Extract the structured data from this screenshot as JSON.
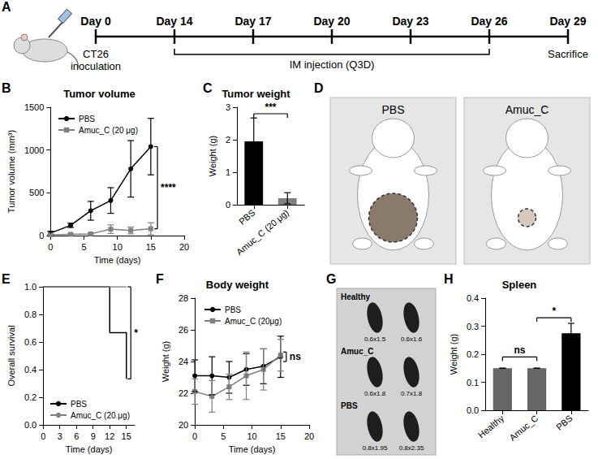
{
  "timeline": {
    "panel": "A",
    "days": [
      "Day 0",
      "Day 14",
      "Day 17",
      "Day 20",
      "Day 23",
      "Day 26",
      "Day 29"
    ],
    "events": [
      {
        "day": "Day 0",
        "label": "CT26 inoculation"
      },
      {
        "day": "Day 29",
        "label": "Sacrifice"
      }
    ],
    "span": {
      "from": "Day 14",
      "to": "Day 26",
      "label": "IM injection (Q3D)"
    }
  },
  "chart_data": [
    {
      "panel": "B",
      "type": "line",
      "title": "Tumor volume",
      "x_label": "Time (days)",
      "y_label": "Tumor volume (mm³)",
      "xlim": [
        0,
        20
      ],
      "xticks": [
        0,
        5,
        10,
        15,
        20
      ],
      "ylim": [
        0,
        1500
      ],
      "yticks": [
        0,
        500,
        1000,
        1500
      ],
      "grid": false,
      "legend": "upper left",
      "series": [
        {
          "name": "PBS",
          "color": "#000000",
          "marker": "circle",
          "x": [
            0,
            3,
            6,
            9,
            12,
            15
          ],
          "values": [
            30,
            120,
            290,
            410,
            780,
            1040
          ],
          "errors": [
            20,
            25,
            110,
            150,
            330,
            330
          ]
        },
        {
          "name": "Amuc_C (20 μg)",
          "color": "#808080",
          "marker": "square",
          "x": [
            0,
            3,
            6,
            9,
            12,
            15
          ],
          "values": [
            10,
            15,
            20,
            75,
            60,
            80
          ],
          "errors": [
            5,
            5,
            10,
            50,
            40,
            70
          ]
        }
      ],
      "annotations": [
        {
          "text": "****",
          "x": 16,
          "y": [
            80,
            1040
          ]
        }
      ]
    },
    {
      "panel": "C",
      "type": "bar",
      "title": "Tumor weight",
      "y_label": "Weight (g)",
      "categories": [
        "PBS",
        "Amuc_C (20 μg)"
      ],
      "values": [
        1.95,
        0.2
      ],
      "errors": [
        0.72,
        0.17
      ],
      "colors": [
        "#000000",
        "#808080"
      ],
      "ylim": [
        0,
        3
      ],
      "yticks": [
        0,
        1,
        2,
        3
      ],
      "grid": false,
      "annotations": [
        {
          "text": "***",
          "x": [
            "PBS",
            "Amuc_C (20 μg)"
          ],
          "y": 2.8
        }
      ]
    },
    {
      "panel": "E",
      "type": "line",
      "line_style": "step",
      "marker": "none",
      "x_label": "Time (days)",
      "y_label": "Overall survival",
      "xlim": [
        0,
        16.5
      ],
      "xticks": [
        0,
        3,
        6,
        9,
        12,
        15
      ],
      "ylim": [
        0,
        1
      ],
      "yticks": [
        {
          "value": 0,
          "label": "0.0"
        },
        0.2,
        0.4,
        0.6,
        0.8,
        {
          "value": 1,
          "label": "1.0"
        }
      ],
      "grid": false,
      "legend": "lower left",
      "series": [
        {
          "name": "PBS",
          "color": "#000000",
          "x": [
            0,
            12,
            15
          ],
          "values": [
            1,
            0.667,
            0.333
          ]
        },
        {
          "name": "Amuc_C (20 μg)",
          "color": "#808080",
          "x": [
            0,
            15
          ],
          "values": [
            1,
            1
          ]
        }
      ],
      "annotations": [
        {
          "text": "*",
          "x": 15.8,
          "y": [
            0.333,
            1
          ]
        }
      ]
    },
    {
      "panel": "F",
      "type": "line",
      "title": "Body weight",
      "x_label": "Time (days)",
      "y_label": "Weight (g)",
      "xlim": [
        0,
        20
      ],
      "xticks": [
        0,
        5,
        10,
        15,
        20
      ],
      "ylim": [
        20,
        28
      ],
      "yticks": [
        20,
        22,
        24,
        26,
        28
      ],
      "grid": false,
      "legend": "upper left",
      "series": [
        {
          "name": "PBS",
          "color": "#000000",
          "marker": "circle",
          "x": [
            0,
            3,
            6,
            9,
            12,
            15
          ],
          "values": [
            23.1,
            23.1,
            23.0,
            23.5,
            23.7,
            24.3
          ],
          "errors": [
            1.0,
            1.2,
            1.0,
            1.0,
            1.1,
            1.3
          ]
        },
        {
          "name": "Amuc_C (20μg)",
          "color": "#808080",
          "marker": "square",
          "x": [
            0,
            3,
            6,
            9,
            12,
            15
          ],
          "values": [
            22.1,
            21.8,
            22.4,
            23.1,
            23.5,
            24.4
          ],
          "errors": [
            0.8,
            1.0,
            0.8,
            1.5,
            1.3,
            1.0
          ]
        }
      ],
      "annotations": [
        {
          "text": "ns",
          "x": 16,
          "y": [
            24.0,
            24.6
          ]
        }
      ]
    },
    {
      "panel": "H",
      "type": "bar",
      "title": "Spleen",
      "y_label": "Weight (g)",
      "categories": [
        "Healthy",
        "Amuc_C",
        "PBS"
      ],
      "values": [
        0.15,
        0.15,
        0.275
      ],
      "errors": [
        0,
        0,
        0.035
      ],
      "colors": [
        "#666666",
        "#666666",
        "#000000"
      ],
      "ylim": [
        0,
        0.4
      ],
      "yticks": [
        {
          "value": 0,
          "label": "0.0"
        },
        0.1,
        0.2,
        0.3,
        0.4
      ],
      "grid": false,
      "annotations": [
        {
          "text": "ns",
          "x": [
            "Healthy",
            "Amuc_C"
          ],
          "y": 0.19
        },
        {
          "text": "*",
          "x": [
            "Amuc_C",
            "PBS"
          ],
          "y": 0.33
        }
      ]
    }
  ],
  "photos": [
    {
      "panel": "D",
      "labels": [
        "PBS",
        "Amuc_C"
      ]
    },
    {
      "panel": "G",
      "rows": [
        {
          "label": "Healthy",
          "sizes": [
            "0.6x1.5",
            "0.6x1.6"
          ]
        },
        {
          "label": "Amuc_C",
          "sizes": [
            "0.6x1.8",
            "0.7x1.8"
          ]
        },
        {
          "label": "PBS",
          "sizes": [
            "0.8x1.95",
            "0.8x2.35"
          ]
        }
      ]
    }
  ]
}
